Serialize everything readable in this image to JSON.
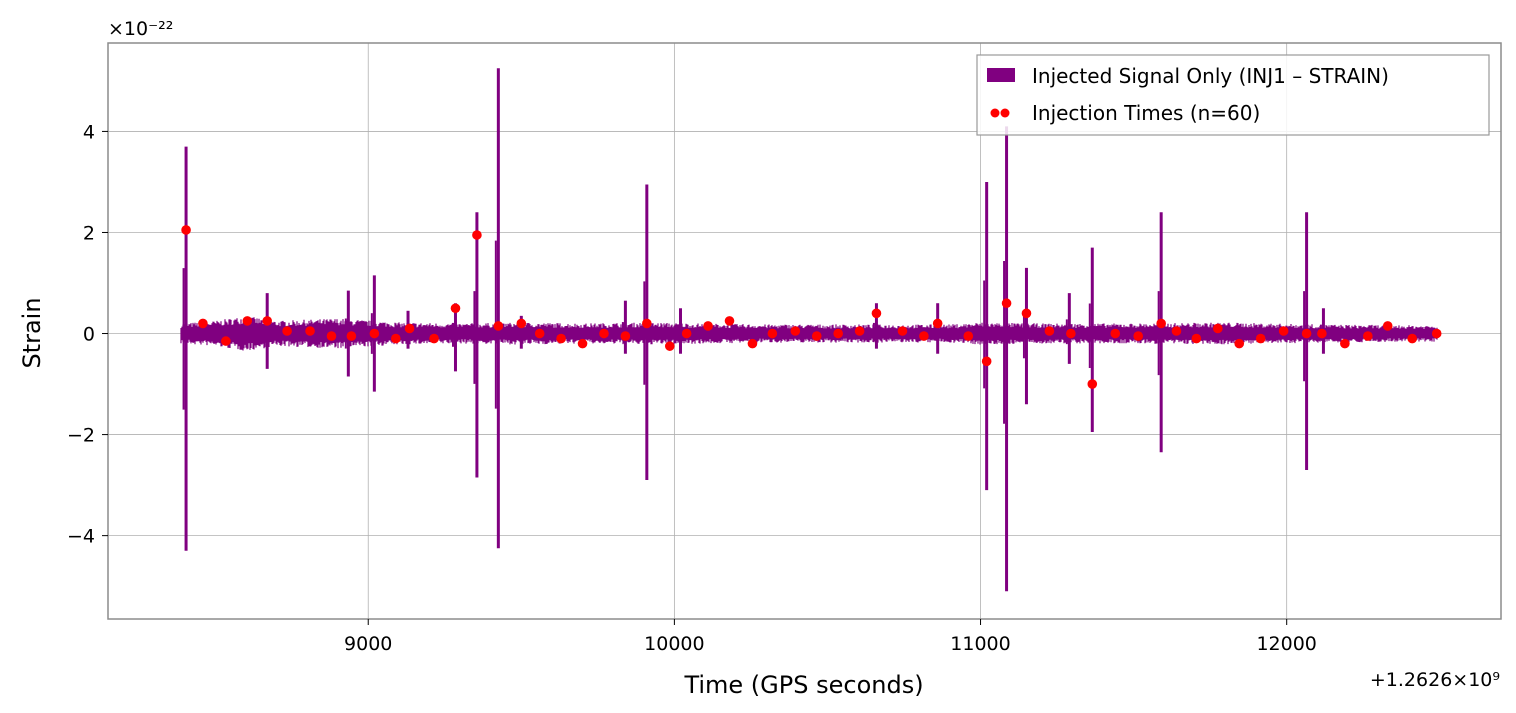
{
  "chart_data": {
    "type": "line",
    "xlabel": "Time (GPS seconds)",
    "ylabel": "Strain",
    "x_offset_label": "+1.2626×10⁹",
    "y_scale_label": "×10⁻²²",
    "xlim": [
      8150,
      12700
    ],
    "ylim": [
      -5.65,
      5.75
    ],
    "x_ticks": [
      9000,
      10000,
      11000,
      12000
    ],
    "y_ticks": [
      -4,
      -2,
      0,
      2,
      4
    ],
    "grid": true,
    "legend_position": "top-right",
    "colors": {
      "signal": "#800080",
      "injections": "#ff0000"
    },
    "series": [
      {
        "name": "Injected Signal Only (INJ1 – STRAIN)",
        "kind": "strain-band",
        "x_range": [
          8390,
          12490
        ],
        "envelope_points": [
          {
            "x": 8390,
            "env": 0.2
          },
          {
            "x": 8500,
            "env": 0.25
          },
          {
            "x": 8600,
            "env": 0.35
          },
          {
            "x": 8700,
            "env": 0.25
          },
          {
            "x": 8900,
            "env": 0.3
          },
          {
            "x": 9100,
            "env": 0.22
          },
          {
            "x": 9300,
            "env": 0.2
          },
          {
            "x": 9500,
            "env": 0.22
          },
          {
            "x": 9700,
            "env": 0.2
          },
          {
            "x": 9900,
            "env": 0.22
          },
          {
            "x": 10100,
            "env": 0.2
          },
          {
            "x": 10300,
            "env": 0.18
          },
          {
            "x": 10600,
            "env": 0.18
          },
          {
            "x": 10900,
            "env": 0.18
          },
          {
            "x": 11000,
            "env": 0.22
          },
          {
            "x": 11200,
            "env": 0.2
          },
          {
            "x": 11500,
            "env": 0.2
          },
          {
            "x": 11800,
            "env": 0.22
          },
          {
            "x": 12100,
            "env": 0.18
          },
          {
            "x": 12490,
            "env": 0.16
          }
        ],
        "spikes": [
          {
            "x": 8405,
            "max": 3.7,
            "min": -4.3
          },
          {
            "x": 8670,
            "max": 0.8,
            "min": -0.7
          },
          {
            "x": 8935,
            "max": 0.85,
            "min": -0.85
          },
          {
            "x": 9020,
            "max": 1.15,
            "min": -1.15
          },
          {
            "x": 9130,
            "max": 0.45,
            "min": -0.3
          },
          {
            "x": 9285,
            "max": 0.6,
            "min": -0.75
          },
          {
            "x": 9355,
            "max": 2.4,
            "min": -2.85
          },
          {
            "x": 9425,
            "max": 5.25,
            "min": -4.25
          },
          {
            "x": 9500,
            "max": 0.35,
            "min": -0.3
          },
          {
            "x": 9840,
            "max": 0.65,
            "min": -0.4
          },
          {
            "x": 9910,
            "max": 2.95,
            "min": -2.9
          },
          {
            "x": 10020,
            "max": 0.5,
            "min": -0.4
          },
          {
            "x": 10660,
            "max": 0.6,
            "min": -0.3
          },
          {
            "x": 10860,
            "max": 0.6,
            "min": -0.4
          },
          {
            "x": 11020,
            "max": 3.0,
            "min": -3.1
          },
          {
            "x": 11085,
            "max": 4.1,
            "min": -5.1
          },
          {
            "x": 11150,
            "max": 1.3,
            "min": -1.4
          },
          {
            "x": 11290,
            "max": 0.8,
            "min": -0.6
          },
          {
            "x": 11365,
            "max": 1.7,
            "min": -1.95
          },
          {
            "x": 11590,
            "max": 2.4,
            "min": -2.35
          },
          {
            "x": 12065,
            "max": 2.4,
            "min": -2.7
          },
          {
            "x": 12120,
            "max": 0.5,
            "min": -0.4
          }
        ]
      },
      {
        "name": "Injection Times (n=60)",
        "kind": "scatter",
        "points": [
          {
            "x": 8405,
            "y": 2.05
          },
          {
            "x": 8460,
            "y": 0.2
          },
          {
            "x": 8535,
            "y": -0.15
          },
          {
            "x": 8605,
            "y": 0.25
          },
          {
            "x": 8670,
            "y": 0.25
          },
          {
            "x": 8735,
            "y": 0.05
          },
          {
            "x": 8810,
            "y": 0.05
          },
          {
            "x": 8880,
            "y": -0.05
          },
          {
            "x": 8945,
            "y": -0.05
          },
          {
            "x": 9020,
            "y": 0.0
          },
          {
            "x": 9090,
            "y": -0.1
          },
          {
            "x": 9135,
            "y": 0.1
          },
          {
            "x": 9215,
            "y": -0.1
          },
          {
            "x": 9285,
            "y": 0.5
          },
          {
            "x": 9355,
            "y": 1.95
          },
          {
            "x": 9425,
            "y": 0.15
          },
          {
            "x": 9500,
            "y": 0.2
          },
          {
            "x": 9560,
            "y": 0.0
          },
          {
            "x": 9630,
            "y": -0.1
          },
          {
            "x": 9700,
            "y": -0.2
          },
          {
            "x": 9770,
            "y": 0.0
          },
          {
            "x": 9840,
            "y": -0.05
          },
          {
            "x": 9910,
            "y": 0.2
          },
          {
            "x": 9985,
            "y": -0.25
          },
          {
            "x": 10040,
            "y": 0.0
          },
          {
            "x": 10110,
            "y": 0.15
          },
          {
            "x": 10180,
            "y": 0.25
          },
          {
            "x": 10255,
            "y": -0.2
          },
          {
            "x": 10320,
            "y": 0.0
          },
          {
            "x": 10395,
            "y": 0.05
          },
          {
            "x": 10465,
            "y": -0.05
          },
          {
            "x": 10535,
            "y": 0.0
          },
          {
            "x": 10605,
            "y": 0.05
          },
          {
            "x": 10660,
            "y": 0.4
          },
          {
            "x": 10745,
            "y": 0.05
          },
          {
            "x": 10815,
            "y": -0.05
          },
          {
            "x": 10860,
            "y": 0.2
          },
          {
            "x": 10960,
            "y": -0.05
          },
          {
            "x": 11020,
            "y": -0.55
          },
          {
            "x": 11085,
            "y": 0.6
          },
          {
            "x": 11150,
            "y": 0.4
          },
          {
            "x": 11225,
            "y": 0.05
          },
          {
            "x": 11295,
            "y": 0.0
          },
          {
            "x": 11365,
            "y": -1.0
          },
          {
            "x": 11440,
            "y": 0.0
          },
          {
            "x": 11515,
            "y": -0.05
          },
          {
            "x": 11590,
            "y": 0.2
          },
          {
            "x": 11640,
            "y": 0.05
          },
          {
            "x": 11705,
            "y": -0.1
          },
          {
            "x": 11775,
            "y": 0.1
          },
          {
            "x": 11845,
            "y": -0.2
          },
          {
            "x": 11915,
            "y": -0.1
          },
          {
            "x": 11990,
            "y": 0.05
          },
          {
            "x": 12065,
            "y": 0.0
          },
          {
            "x": 12115,
            "y": 0.0
          },
          {
            "x": 12190,
            "y": -0.2
          },
          {
            "x": 12265,
            "y": -0.05
          },
          {
            "x": 12330,
            "y": 0.15
          },
          {
            "x": 12410,
            "y": -0.1
          },
          {
            "x": 12490,
            "y": 0.0
          }
        ]
      }
    ]
  }
}
